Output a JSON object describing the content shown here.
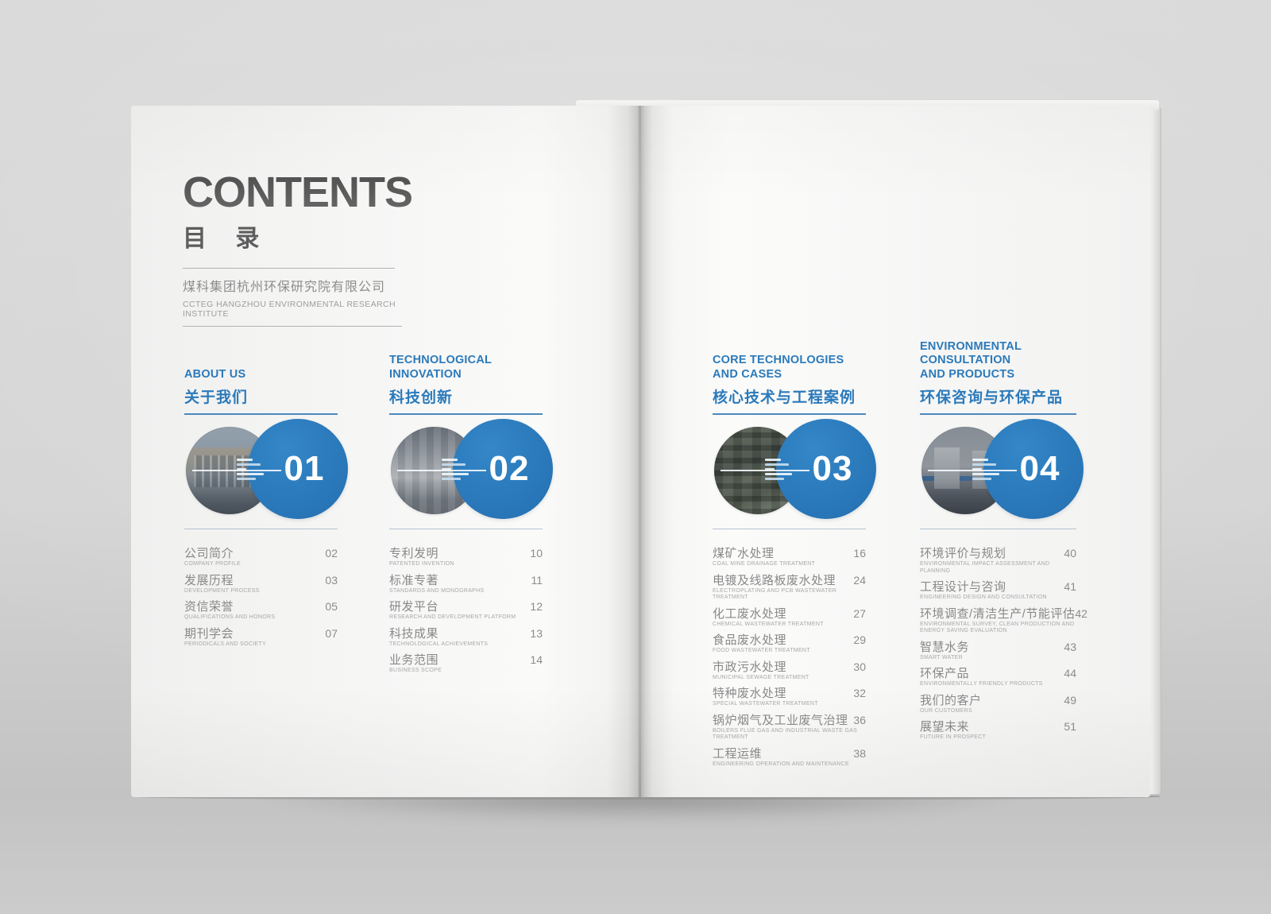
{
  "masthead": {
    "title": "CONTENTS",
    "title_cn": "目 录",
    "company_cn": "煤科集团杭州环保研究院有限公司",
    "company_en": "CCTEG HANGZHOU ENVIRONMENTAL RESEARCH INSTITUTE"
  },
  "colors": {
    "accent_blue": "#2b7abb",
    "underline_blue": "#4c88bd",
    "title_gray": "#545454",
    "item_text_gray": "#898989",
    "caption_gray": "#a8a8a8",
    "page_paper": "#f7f7f6",
    "backdrop_gray": "#d4d4d4"
  },
  "sections": [
    {
      "number": "01",
      "title_en": "ABOUT US",
      "title_cn": "关于我们",
      "photo": "office-building-photo",
      "items": [
        {
          "cn": "公司简介",
          "en": "COMPANY PROFILE",
          "page": "02"
        },
        {
          "cn": "发展历程",
          "en": "DEVELOPMENT PROCESS",
          "page": "03"
        },
        {
          "cn": "资信荣誉",
          "en": "QUALIFICATIONS AND HONORS",
          "page": "05"
        },
        {
          "cn": "期刊学会",
          "en": "PERIODICALS AND SOCIETY",
          "page": "07"
        }
      ]
    },
    {
      "number": "02",
      "title_en": "TECHNOLOGICAL\nINNOVATION",
      "title_cn": "科技创新",
      "photo": "laboratory-photo",
      "items": [
        {
          "cn": "专利发明",
          "en": "PATENTED INVENTION",
          "page": "10"
        },
        {
          "cn": "标准专著",
          "en": "STANDARDS AND MONOGRAPHS",
          "page": "11"
        },
        {
          "cn": "研发平台",
          "en": "RESEARCH AND DEVELOPMENT PLATFORM",
          "page": "12"
        },
        {
          "cn": "科技成果",
          "en": "TECHNOLOGICAL ACHIEVEMENTS",
          "page": "13"
        },
        {
          "cn": "业务范围",
          "en": "BUSINESS SCOPE",
          "page": "14"
        }
      ]
    },
    {
      "number": "03",
      "title_en": "CORE TECHNOLOGIES\nAND CASES",
      "title_cn": "核心技术与工程案例",
      "photo": "aerial-treatment-plant-photo",
      "items": [
        {
          "cn": "煤矿水处理",
          "en": "COAL MINE DRAINAGE TREATMENT",
          "page": "16"
        },
        {
          "cn": "电镀及线路板废水处理",
          "en": "ELECTROPLATING AND PCB WASTEWATER TREATMENT",
          "page": "24"
        },
        {
          "cn": "化工废水处理",
          "en": "CHEMICAL WASTEWATER TREATMENT",
          "page": "27"
        },
        {
          "cn": "食品废水处理",
          "en": "FOOD WASTEWATER TREATMENT",
          "page": "29"
        },
        {
          "cn": "市政污水处理",
          "en": "MUNICIPAL SEWAGE TREATMENT",
          "page": "30"
        },
        {
          "cn": "特种废水处理",
          "en": "SPECIAL WASTEWATER TREATMENT",
          "page": "32"
        },
        {
          "cn": "锅炉烟气及工业废气治理",
          "en": "BOILERS FLUE GAS AND INDUSTRIAL WASTE GAS TREATMENT",
          "page": "36"
        },
        {
          "cn": "工程运维",
          "en": "ENGINEERING OPERATION AND MAINTENANCE",
          "page": "38"
        }
      ]
    },
    {
      "number": "04",
      "title_en": "ENVIRONMENTAL CONSULTATION\nAND PRODUCTS",
      "title_cn": "环保咨询与环保产品",
      "photo": "industrial-tanks-photo",
      "items": [
        {
          "cn": "环境评价与规划",
          "en": "ENVIRONMENTAL IMPACT ASSESSMENT AND PLANNING",
          "page": "40"
        },
        {
          "cn": "工程设计与咨询",
          "en": "ENGINEERING DESIGN AND CONSULTATION",
          "page": "41"
        },
        {
          "cn": "环境调查/清洁生产/节能评估",
          "en": "ENVIRONMENTAL SURVEY, CLEAN PRODUCTION AND ENERGY SAVING EVALUATION",
          "page": "42"
        },
        {
          "cn": "智慧水务",
          "en": "SMART WATER",
          "page": "43"
        },
        {
          "cn": "环保产品",
          "en": "ENVIRONMENTALLY FRIENDLY PRODUCTS",
          "page": "44"
        },
        {
          "cn": "我们的客户",
          "en": "OUR CUSTOMERS",
          "page": "49"
        },
        {
          "cn": "展望未来",
          "en": "FUTURE IN PROSPECT",
          "page": "51"
        }
      ]
    }
  ]
}
